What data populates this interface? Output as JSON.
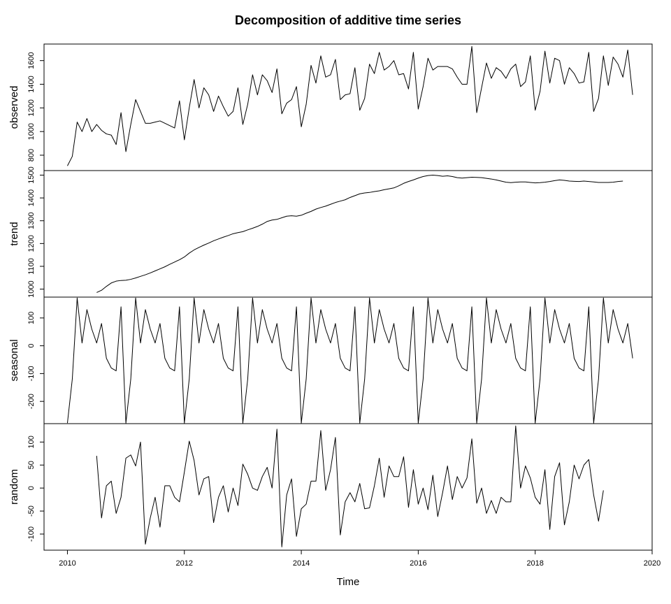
{
  "chart_data": {
    "type": "line",
    "title": "Decomposition of additive time series",
    "xlabel": "Time",
    "x_start": 2010.0,
    "x_step": 0.08333333,
    "xlim": [
      2009.6,
      2020.0
    ],
    "x_ticks": [
      2010,
      2012,
      2014,
      2016,
      2018,
      2020
    ],
    "x_tick_labels": [
      "2010",
      "2012",
      "2014",
      "2016",
      "2018",
      "2020"
    ],
    "panels": [
      {
        "name": "observed",
        "ylabel": "observed",
        "ylim": [
          670,
          1740
        ],
        "y_ticks": [
          800,
          1000,
          1200,
          1400,
          1600
        ],
        "y_tick_labels": [
          "800",
          "1000",
          "1200",
          "1400",
          "1600"
        ],
        "offset": 0,
        "values": [
          710,
          790,
          1080,
          1000,
          1110,
          1000,
          1060,
          1010,
          980,
          970,
          890,
          1160,
          830,
          1060,
          1270,
          1170,
          1070,
          1070,
          1080,
          1090,
          1070,
          1050,
          1030,
          1260,
          930,
          1200,
          1440,
          1200,
          1370,
          1310,
          1170,
          1300,
          1210,
          1130,
          1170,
          1370,
          1060,
          1230,
          1480,
          1310,
          1480,
          1430,
          1330,
          1530,
          1150,
          1240,
          1270,
          1380,
          1040,
          1230,
          1560,
          1410,
          1640,
          1460,
          1480,
          1610,
          1270,
          1310,
          1320,
          1540,
          1180,
          1280,
          1570,
          1490,
          1670,
          1520,
          1550,
          1600,
          1480,
          1490,
          1360,
          1670,
          1190,
          1380,
          1620,
          1520,
          1550,
          1550,
          1550,
          1530,
          1460,
          1400,
          1400,
          1720,
          1160,
          1370,
          1580,
          1450,
          1540,
          1510,
          1450,
          1530,
          1570,
          1380,
          1420,
          1640,
          1180,
          1340,
          1680,
          1410,
          1620,
          1600,
          1400,
          1540,
          1490,
          1410,
          1420,
          1670,
          1170,
          1280,
          1640,
          1390,
          1630,
          1570,
          1460,
          1690,
          1310
        ]
      },
      {
        "name": "trend",
        "ylabel": "trend",
        "ylim": [
          965,
          1520
        ],
        "y_ticks": [
          1000,
          1100,
          1200,
          1300,
          1400,
          1500
        ],
        "y_tick_labels": [
          "1000",
          "1100",
          "1200",
          "1300",
          "1400",
          "1500"
        ],
        "offset": 6,
        "values": [
          985,
          995,
          1012,
          1027,
          1035,
          1038,
          1039,
          1043,
          1049,
          1056,
          1063,
          1071,
          1080,
          1089,
          1098,
          1109,
          1119,
          1129,
          1141,
          1158,
          1172,
          1183,
          1193,
          1202,
          1212,
          1220,
          1228,
          1235,
          1243,
          1248,
          1252,
          1260,
          1267,
          1275,
          1285,
          1297,
          1303,
          1306,
          1313,
          1320,
          1322,
          1320,
          1324,
          1333,
          1341,
          1351,
          1358,
          1364,
          1372,
          1380,
          1386,
          1392,
          1402,
          1410,
          1418,
          1422,
          1424,
          1428,
          1431,
          1436,
          1440,
          1444,
          1453,
          1464,
          1472,
          1479,
          1487,
          1494,
          1498,
          1500,
          1498,
          1495,
          1497,
          1494,
          1489,
          1487,
          1489,
          1491,
          1490,
          1489,
          1486,
          1483,
          1479,
          1474,
          1469,
          1467,
          1469,
          1470,
          1470,
          1468,
          1466,
          1467,
          1469,
          1472,
          1476,
          1479,
          1477,
          1474,
          1473,
          1472,
          1474,
          1472,
          1470,
          1468,
          1468,
          1468,
          1469,
          1472,
          1474
        ]
      },
      {
        "name": "seasonal",
        "ylabel": "seasonal",
        "ylim": [
          -280,
          175
        ],
        "y_ticks": [
          -200,
          -100,
          0,
          100
        ],
        "y_tick_labels": [
          "-200",
          "-100",
          "0",
          "100"
        ],
        "offset": 0,
        "values": [
          -278,
          -120,
          172,
          10,
          130,
          60,
          10,
          80,
          -45,
          -80,
          -90,
          140,
          -278,
          -120,
          172,
          10,
          130,
          60,
          10,
          80,
          -45,
          -80,
          -90,
          140,
          -278,
          -120,
          172,
          10,
          130,
          60,
          10,
          80,
          -45,
          -80,
          -90,
          140,
          -278,
          -120,
          172,
          10,
          130,
          60,
          10,
          80,
          -45,
          -80,
          -90,
          140,
          -278,
          -120,
          172,
          10,
          130,
          60,
          10,
          80,
          -45,
          -80,
          -90,
          140,
          -278,
          -120,
          172,
          10,
          130,
          60,
          10,
          80,
          -45,
          -80,
          -90,
          140,
          -278,
          -120,
          172,
          10,
          130,
          60,
          10,
          80,
          -45,
          -80,
          -90,
          140,
          -278,
          -120,
          172,
          10,
          130,
          60,
          10,
          80,
          -45,
          -80,
          -90,
          140,
          -278,
          -120,
          172,
          10,
          130,
          60,
          10,
          80,
          -45,
          -80,
          -90,
          140,
          -278,
          -120,
          172,
          10,
          130,
          60,
          10,
          80,
          -45
        ]
      },
      {
        "name": "random",
        "ylabel": "random",
        "ylim": [
          -135,
          140
        ],
        "y_ticks": [
          -100,
          -50,
          0,
          50,
          100
        ],
        "y_tick_labels": [
          "-100",
          "-50",
          "0",
          "50",
          "100"
        ],
        "offset": 6,
        "values": [
          70,
          -65,
          5,
          15,
          -55,
          -20,
          65,
          72,
          48,
          100,
          -122,
          -65,
          -20,
          -85,
          5,
          5,
          -20,
          -30,
          35,
          102,
          60,
          -15,
          20,
          25,
          -75,
          -20,
          5,
          -52,
          0,
          -38,
          52,
          30,
          0,
          -5,
          25,
          45,
          0,
          128,
          -128,
          -15,
          20,
          -105,
          -45,
          -35,
          15,
          15,
          125,
          -5,
          40,
          110,
          -102,
          -30,
          -10,
          -30,
          10,
          -45,
          -43,
          5,
          65,
          -20,
          48,
          25,
          25,
          68,
          -42,
          40,
          -35,
          0,
          -47,
          28,
          -62,
          -10,
          48,
          -25,
          25,
          0,
          22,
          107,
          -33,
          0,
          -55,
          -27,
          -55,
          -20,
          -30,
          -30,
          135,
          0,
          48,
          22,
          -20,
          -35,
          40,
          -90,
          25,
          55,
          -80,
          -30,
          50,
          20,
          50,
          62,
          -15,
          -72,
          -5
        ]
      }
    ]
  }
}
